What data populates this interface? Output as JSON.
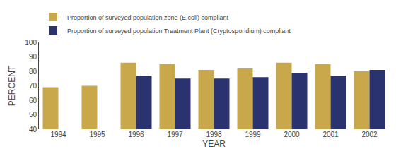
{
  "chart_data": {
    "type": "bar",
    "categories": [
      "1994",
      "1995",
      "1996",
      "1997",
      "1998",
      "1999",
      "2000",
      "2001",
      "2002"
    ],
    "series": [
      {
        "name": "Proportion of surveyed population zone (E.coli) compliant",
        "color": "#C9A84C",
        "values": [
          69,
          70,
          86,
          85,
          81,
          82,
          86,
          85,
          80
        ]
      },
      {
        "name": "Proportion of surveyed population Treatment Plant (Cryptosporidium) compliant",
        "color": "#2B3270",
        "values": [
          null,
          null,
          77,
          75,
          75,
          76,
          79,
          77,
          81
        ]
      }
    ],
    "x_label": "YEAR",
    "y_label": "PERCENT",
    "ylim": [
      40,
      100
    ],
    "yticks": [
      40,
      50,
      60,
      70,
      80,
      90,
      100
    ],
    "grid": false,
    "legend": "upper left"
  }
}
